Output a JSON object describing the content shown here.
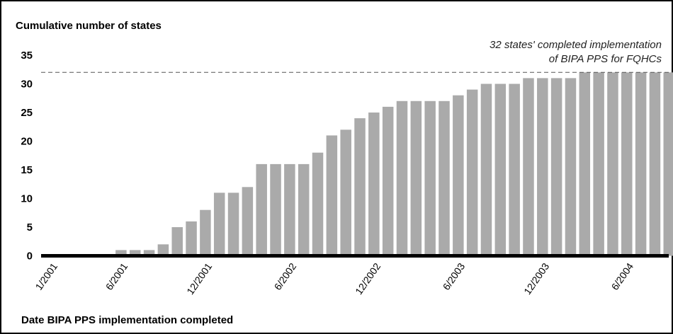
{
  "chart_data": {
    "type": "bar",
    "title": "",
    "ylabel": "Cumulative number of states",
    "xlabel": "Date BIPA PPS implementation completed",
    "ylim": [
      0,
      35
    ],
    "yticks": [
      0,
      5,
      10,
      15,
      20,
      25,
      30,
      35
    ],
    "x_tick_labels": [
      "1/2001",
      "6/2001",
      "12/2001",
      "6/2002",
      "12/2002",
      "6/2003",
      "12/2003",
      "6/2004"
    ],
    "x_tick_bar_index": [
      0,
      5,
      11,
      17,
      23,
      29,
      35,
      41
    ],
    "values": [
      0,
      0,
      0,
      0,
      0,
      1,
      1,
      1,
      2,
      5,
      6,
      8,
      11,
      11,
      12,
      16,
      16,
      16,
      16,
      18,
      21,
      22,
      24,
      25,
      26,
      27,
      27,
      27,
      27,
      28,
      29,
      30,
      30,
      30,
      31,
      31,
      31,
      31,
      32,
      32,
      32,
      32,
      32,
      32,
      32
    ],
    "reference_line": {
      "value": 32,
      "style": "dashed"
    },
    "annotation": [
      "32 states' completed implementation",
      "of BIPA PPS for FQHCs"
    ],
    "bar_color": "#aaaaaa",
    "grid": false
  }
}
